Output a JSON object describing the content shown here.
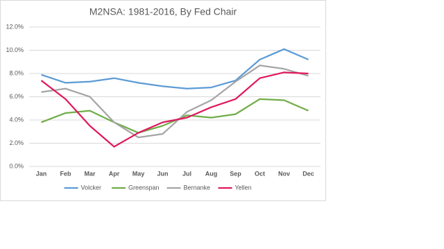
{
  "chart_data": {
    "type": "line",
    "title": "M2NSA: 1981-2016, By Fed Chair",
    "categories": [
      "Jan",
      "Feb",
      "Mar",
      "Apr",
      "May",
      "Jun",
      "Jul",
      "Aug",
      "Sep",
      "Oct",
      "Nov",
      "Dec"
    ],
    "series": [
      {
        "name": "Volcker",
        "color": "#5b9bd5",
        "values": [
          7.9,
          7.2,
          7.3,
          7.6,
          7.2,
          6.9,
          6.7,
          6.8,
          7.4,
          9.2,
          10.1,
          9.2
        ]
      },
      {
        "name": "Greenspan",
        "color": "#70ad47",
        "values": [
          3.8,
          4.6,
          4.8,
          3.8,
          2.9,
          3.5,
          4.4,
          4.2,
          4.5,
          5.8,
          5.7,
          4.8
        ]
      },
      {
        "name": "Bernanke",
        "color": "#a5a5a5",
        "values": [
          6.4,
          6.7,
          6.0,
          3.8,
          2.5,
          2.8,
          4.7,
          5.7,
          7.3,
          8.7,
          8.4,
          7.8
        ]
      },
      {
        "name": "Yellen",
        "color": "#e0195f",
        "values": [
          7.4,
          5.8,
          3.5,
          1.7,
          2.9,
          3.8,
          4.2,
          5.1,
          5.8,
          7.6,
          8.1,
          8.0
        ]
      }
    ],
    "ylim": [
      0,
      12
    ],
    "yticks": [
      {
        "value": 0,
        "label": "0.0%"
      },
      {
        "value": 2,
        "label": "2.0%"
      },
      {
        "value": 4,
        "label": "4.0%"
      },
      {
        "value": 6,
        "label": "6.0%"
      },
      {
        "value": 8,
        "label": "8.0%"
      },
      {
        "value": 10,
        "label": "10.0%"
      },
      {
        "value": 12,
        "label": "12.0%"
      }
    ],
    "grid": true,
    "legend": "bottom"
  }
}
